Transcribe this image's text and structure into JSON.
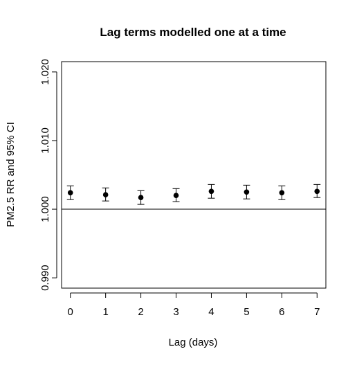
{
  "chart_data": {
    "type": "scatter",
    "title": "Lag terms modelled one at a time",
    "xlabel": "Lag (days)",
    "ylabel": "PM2.5 RR and 95% CI",
    "xlim": [
      -0.25,
      7.25
    ],
    "ylim": [
      0.9885,
      1.0215
    ],
    "x_ticks": [
      0,
      1,
      2,
      3,
      4,
      5,
      6,
      7
    ],
    "y_ticks": [
      0.99,
      1.0,
      1.01,
      1.02
    ],
    "y_tick_labels": [
      "0.990",
      "1.000",
      "1.010",
      "1.020"
    ],
    "reference_line": 1.0,
    "grid": false,
    "points": [
      {
        "x": 0,
        "y": 1.0024,
        "lower": 1.0014,
        "upper": 1.0034
      },
      {
        "x": 1,
        "y": 1.0021,
        "lower": 1.0012,
        "upper": 1.0031
      },
      {
        "x": 2,
        "y": 1.0017,
        "lower": 1.0007,
        "upper": 1.0027
      },
      {
        "x": 3,
        "y": 1.002,
        "lower": 1.0011,
        "upper": 1.003
      },
      {
        "x": 4,
        "y": 1.0026,
        "lower": 1.0016,
        "upper": 1.0036
      },
      {
        "x": 5,
        "y": 1.0025,
        "lower": 1.0015,
        "upper": 1.0035
      },
      {
        "x": 6,
        "y": 1.0024,
        "lower": 1.0014,
        "upper": 1.0034
      },
      {
        "x": 7,
        "y": 1.0026,
        "lower": 1.0017,
        "upper": 1.0036
      }
    ]
  }
}
